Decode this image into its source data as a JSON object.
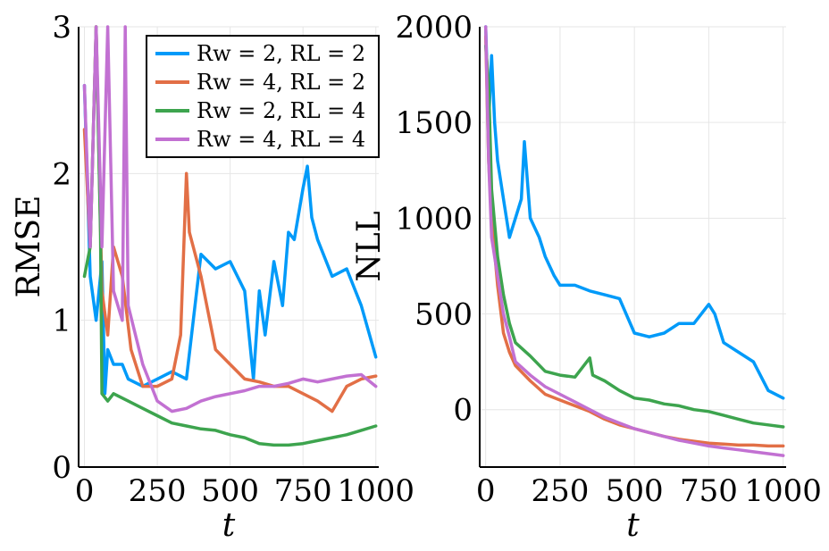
{
  "chart_data": [
    {
      "type": "line",
      "ylabel": "RMSE",
      "xlabel": "t",
      "xlim": [
        -20,
        1010
      ],
      "ylim": [
        0,
        3
      ],
      "xticks": [
        0,
        250,
        500,
        750,
        1000
      ],
      "yticks": [
        0,
        1,
        2,
        3
      ],
      "grid": true,
      "legend": "top-right",
      "series": [
        {
          "name": "R_w = 2, R_L = 2",
          "legend_label": "Rw = 2, RL = 2",
          "color": "#009af9",
          "x": [
            0,
            20,
            40,
            60,
            70,
            80,
            100,
            130,
            150,
            200,
            250,
            300,
            350,
            400,
            450,
            500,
            550,
            580,
            600,
            620,
            650,
            680,
            700,
            720,
            750,
            765,
            780,
            800,
            850,
            900,
            950,
            1000
          ],
          "y": [
            2.6,
            1.3,
            1.0,
            1.4,
            0.5,
            0.8,
            0.7,
            0.7,
            0.6,
            0.55,
            0.6,
            0.65,
            0.6,
            1.45,
            1.35,
            1.4,
            1.2,
            0.6,
            1.2,
            0.9,
            1.4,
            1.1,
            1.6,
            1.55,
            1.9,
            2.05,
            1.7,
            1.55,
            1.3,
            1.35,
            1.1,
            0.75
          ]
        },
        {
          "name": "R_w = 4, R_L = 2",
          "legend_label": "Rw = 4, RL = 2",
          "color": "#e26f46",
          "x": [
            0,
            20,
            40,
            60,
            80,
            100,
            130,
            160,
            200,
            250,
            300,
            330,
            350,
            360,
            380,
            400,
            450,
            500,
            550,
            600,
            650,
            700,
            750,
            800,
            850,
            900,
            950,
            1000
          ],
          "y": [
            2.3,
            1.5,
            3.0,
            1.2,
            0.9,
            1.5,
            1.3,
            0.8,
            0.55,
            0.55,
            0.6,
            0.9,
            2.0,
            1.6,
            1.45,
            1.3,
            0.8,
            0.7,
            0.6,
            0.58,
            0.55,
            0.55,
            0.5,
            0.45,
            0.38,
            0.55,
            0.6,
            0.62
          ]
        },
        {
          "name": "R_w = 2, R_L = 4",
          "legend_label": "Rw = 2, RL = 4",
          "color": "#3da44e",
          "x": [
            0,
            20,
            40,
            55,
            60,
            80,
            100,
            150,
            200,
            250,
            300,
            350,
            400,
            450,
            500,
            550,
            600,
            650,
            700,
            750,
            800,
            850,
            900,
            950,
            1000
          ],
          "y": [
            1.3,
            1.5,
            3.0,
            1.6,
            0.5,
            0.45,
            0.5,
            0.45,
            0.4,
            0.35,
            0.3,
            0.28,
            0.26,
            0.25,
            0.22,
            0.2,
            0.16,
            0.15,
            0.15,
            0.16,
            0.18,
            0.2,
            0.22,
            0.25,
            0.28
          ]
        },
        {
          "name": "R_w = 4, R_L = 4",
          "legend_label": "Rw = 4, RL = 4",
          "color": "#c271d2",
          "x": [
            0,
            10,
            20,
            40,
            60,
            80,
            100,
            130,
            140,
            150,
            200,
            250,
            300,
            350,
            400,
            450,
            500,
            550,
            600,
            650,
            700,
            750,
            800,
            850,
            900,
            950,
            1000
          ],
          "y": [
            2.6,
            2.0,
            1.5,
            3.0,
            1.5,
            3.0,
            1.2,
            1.0,
            3.0,
            1.1,
            0.7,
            0.45,
            0.38,
            0.4,
            0.45,
            0.48,
            0.5,
            0.52,
            0.55,
            0.55,
            0.57,
            0.6,
            0.58,
            0.6,
            0.62,
            0.63,
            0.55
          ]
        }
      ]
    },
    {
      "type": "line",
      "ylabel": "NLL",
      "xlabel": "t",
      "xlim": [
        -20,
        1010
      ],
      "ylim": [
        -300,
        2000
      ],
      "xticks": [
        0,
        250,
        500,
        750,
        1000
      ],
      "yticks": [
        0,
        500,
        1000,
        1500,
        2000
      ],
      "grid": true,
      "series": [
        {
          "name": "R_w = 2, R_L = 2",
          "color": "#009af9",
          "x": [
            0,
            10,
            20,
            30,
            40,
            60,
            80,
            100,
            120,
            130,
            150,
            180,
            200,
            230,
            250,
            300,
            350,
            400,
            450,
            500,
            550,
            600,
            650,
            700,
            750,
            770,
            800,
            850,
            900,
            950,
            1000
          ],
          "y": [
            2000,
            1500,
            1850,
            1500,
            1300,
            1100,
            900,
            1000,
            1100,
            1400,
            1000,
            900,
            800,
            700,
            650,
            650,
            620,
            600,
            580,
            400,
            380,
            400,
            450,
            450,
            550,
            500,
            350,
            300,
            250,
            100,
            60
          ]
        },
        {
          "name": "R_w = 4, R_L = 2",
          "color": "#e26f46",
          "x": [
            0,
            10,
            20,
            40,
            60,
            80,
            100,
            150,
            200,
            250,
            300,
            350,
            400,
            450,
            500,
            550,
            600,
            650,
            700,
            750,
            800,
            850,
            900,
            950,
            1000
          ],
          "y": [
            1950,
            1300,
            1000,
            650,
            400,
            300,
            230,
            150,
            80,
            50,
            20,
            -10,
            -50,
            -80,
            -100,
            -120,
            -140,
            -155,
            -165,
            -175,
            -180,
            -185,
            -185,
            -190,
            -190
          ]
        },
        {
          "name": "R_w = 2, R_L = 4",
          "color": "#3da44e",
          "x": [
            0,
            10,
            20,
            40,
            60,
            80,
            100,
            150,
            200,
            250,
            300,
            350,
            360,
            400,
            450,
            500,
            550,
            600,
            650,
            700,
            750,
            800,
            850,
            900,
            950,
            1000
          ],
          "y": [
            1900,
            1700,
            1150,
            800,
            600,
            450,
            350,
            280,
            200,
            180,
            170,
            270,
            180,
            150,
            100,
            60,
            50,
            30,
            20,
            0,
            -10,
            -30,
            -50,
            -70,
            -80,
            -90
          ]
        },
        {
          "name": "R_w = 4, R_L = 4",
          "color": "#c271d2",
          "x": [
            0,
            10,
            20,
            40,
            60,
            80,
            100,
            150,
            200,
            250,
            300,
            350,
            400,
            450,
            500,
            550,
            600,
            650,
            700,
            750,
            800,
            850,
            900,
            950,
            1000
          ],
          "y": [
            2000,
            1300,
            900,
            700,
            500,
            380,
            250,
            180,
            120,
            80,
            40,
            0,
            -40,
            -70,
            -100,
            -120,
            -140,
            -160,
            -175,
            -190,
            -200,
            -210,
            -220,
            -230,
            -240
          ]
        }
      ]
    }
  ]
}
